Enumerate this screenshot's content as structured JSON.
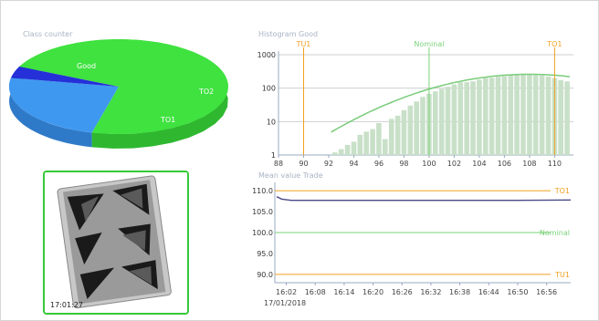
{
  "class_counter": {
    "title": "Class counter",
    "labels": {
      "good": "Good",
      "to2": "TO2",
      "to1": "TO1"
    },
    "colors": {
      "good": "#3fe23f",
      "to1": "#3f98f0",
      "to2": "#2530d8"
    }
  },
  "image_panel": {
    "timestamp": "17:01:27",
    "border_color": "#37c837"
  },
  "histogram": {
    "title": "Histogram Good",
    "markers": {
      "tu1": "TU1",
      "nominal": "Nominal",
      "to1": "TO1"
    },
    "colors": {
      "bars": "#c8e0c8",
      "curve": "#7acc7a",
      "limit": "#f0a020",
      "nominal": "#7ad27a"
    }
  },
  "trend": {
    "title": "Mean value Trade",
    "date": "17/01/2018",
    "line_labels": {
      "to1": "TO1",
      "nominal": "Nominal",
      "tu1": "TU1"
    },
    "colors": {
      "mean": "#4a4a88",
      "limit": "#f0a020",
      "nominal": "#7ad27a"
    }
  },
  "chart_data": [
    {
      "type": "pie",
      "title": "Class counter",
      "categories": [
        "Good",
        "TO1",
        "TO2"
      ],
      "values": [
        72,
        24,
        4
      ]
    },
    {
      "type": "bar",
      "title": "Histogram Good",
      "y_scale": "log",
      "ylim": [
        1,
        1000
      ],
      "xlim": [
        88,
        111.5
      ],
      "x_ticks": [
        "88",
        "90",
        "92",
        "94",
        "96",
        "98",
        "100",
        "102",
        "104",
        "106",
        "108",
        "110"
      ],
      "y_ticks": [
        "1000",
        "100",
        "10",
        "1"
      ],
      "x": [
        92.5,
        93,
        93.5,
        94,
        94.5,
        95,
        95.5,
        96,
        96.5,
        97,
        97.5,
        98,
        98.5,
        99,
        99.5,
        100,
        100.5,
        101,
        101.5,
        102,
        102.5,
        103,
        103.5,
        104,
        104.5,
        105,
        105.5,
        106,
        106.5,
        107,
        107.5,
        108,
        108.5,
        109,
        109.5,
        110,
        110.5,
        111
      ],
      "values": [
        1.2,
        1.5,
        2,
        2.5,
        4,
        5,
        6,
        9,
        3,
        12,
        15,
        22,
        30,
        40,
        55,
        68,
        80,
        95,
        110,
        130,
        150,
        150,
        160,
        180,
        200,
        205,
        220,
        230,
        245,
        250,
        255,
        250,
        245,
        240,
        225,
        200,
        175,
        160
      ],
      "fit_curve": {
        "name": "",
        "mean": 108,
        "peak": 260
      },
      "reference_lines": [
        {
          "label": "TU1",
          "x": 90
        },
        {
          "label": "Nominal",
          "x": 100
        },
        {
          "label": "TO1",
          "x": 110
        }
      ]
    },
    {
      "type": "line",
      "title": "Mean value Trade",
      "ylim": [
        88,
        112
      ],
      "y_ticks": [
        "110.0",
        "105.0",
        "100.0",
        "95.0",
        "90.0"
      ],
      "x_ticks": [
        "16:02",
        "16:08",
        "16:14",
        "16:20",
        "16:26",
        "16:32",
        "16:38",
        "16:44",
        "16:50",
        "16:56"
      ],
      "xlim": [
        "16:00",
        "17:01"
      ],
      "series": [
        {
          "name": "",
          "x": [
            "16:00",
            "16:01",
            "16:03",
            "16:08",
            "16:20",
            "16:35",
            "16:50",
            "17:01"
          ],
          "values": [
            108.6,
            108.0,
            107.7,
            107.7,
            107.7,
            107.7,
            107.7,
            107.8
          ]
        }
      ],
      "reference_lines": [
        {
          "label": "TO1",
          "y": 110
        },
        {
          "label": "Nominal",
          "y": 100
        },
        {
          "label": "TU1",
          "y": 90
        }
      ]
    }
  ]
}
